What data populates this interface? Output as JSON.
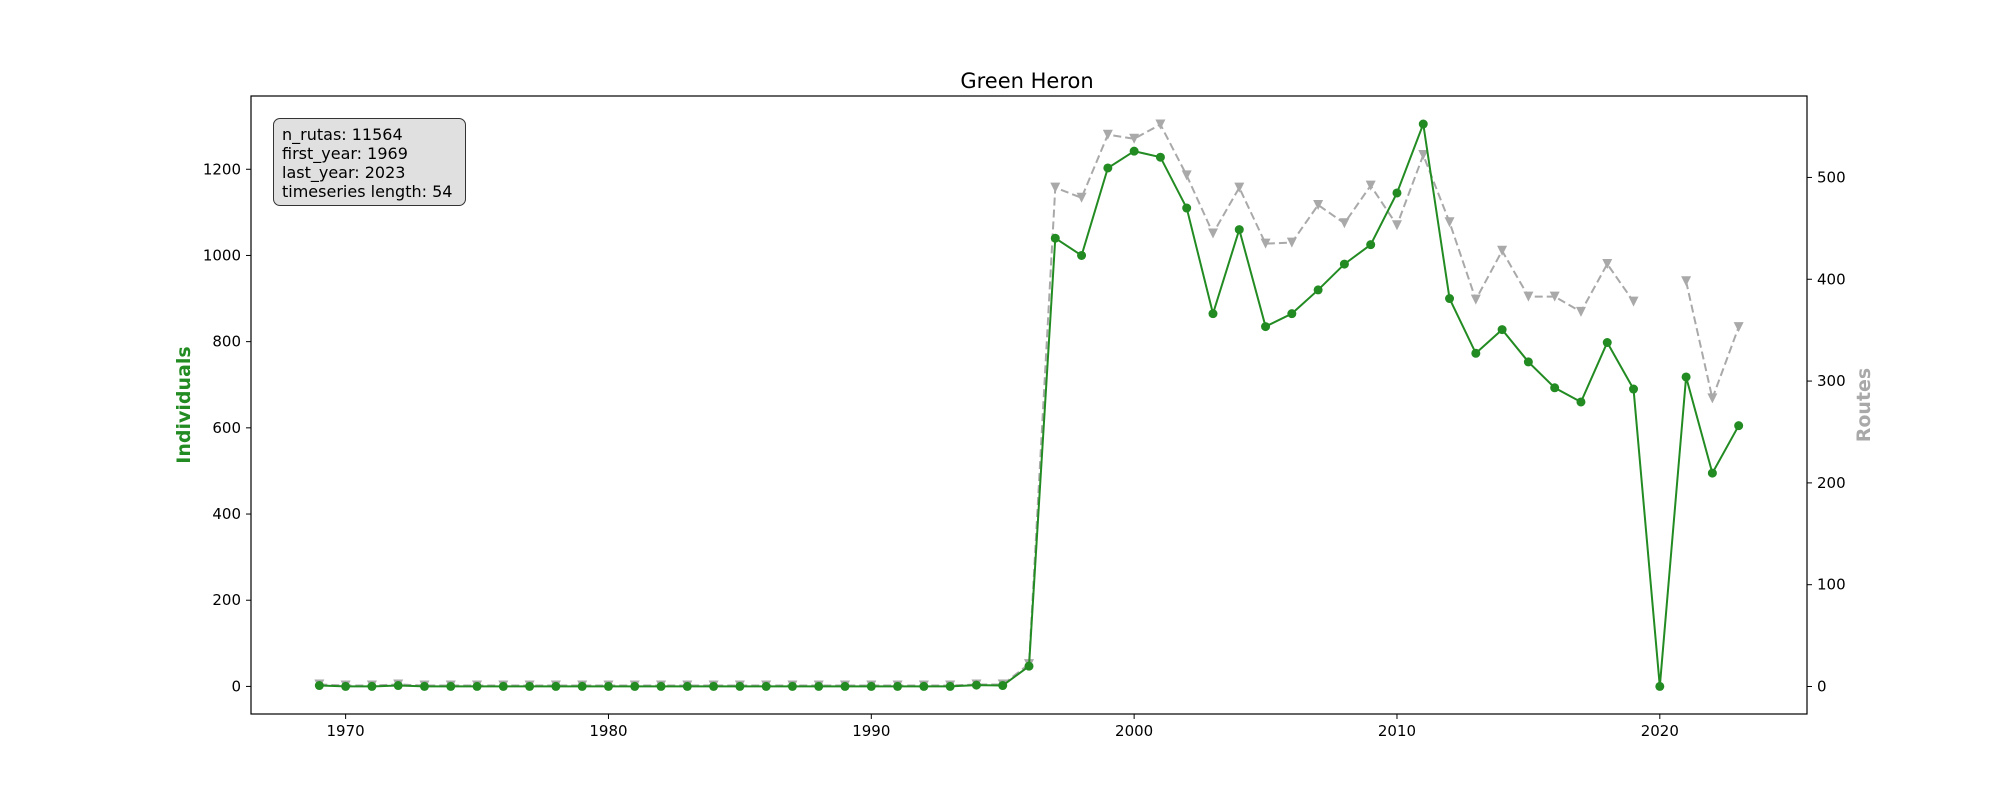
{
  "chart_data": {
    "type": "line",
    "title": "Green Heron",
    "xlabel": "",
    "ylabel": "Individuals",
    "ylabel_right": "Routes",
    "xlim": [
      1966.4,
      2025.6
    ],
    "ylim": [
      -64,
      1370
    ],
    "ylim_right": [
      -27,
      580
    ],
    "xticks": [
      1970,
      1980,
      1990,
      2000,
      2010,
      2020
    ],
    "yticks_left": [
      0,
      200,
      400,
      600,
      800,
      1000,
      1200
    ],
    "yticks_right": [
      0,
      100,
      200,
      300,
      400,
      500
    ],
    "grid": false,
    "colors": {
      "individuals": "#228b22",
      "routes": "#a9a9a9"
    },
    "info_box": {
      "n_rutas": "n_rutas: 11564",
      "first_year": "first_year: 1969",
      "last_year": "last_year: 2023",
      "ts_length": "timeseries length: 54"
    },
    "x": [
      1969,
      1970,
      1971,
      1972,
      1973,
      1974,
      1975,
      1976,
      1977,
      1978,
      1979,
      1980,
      1981,
      1982,
      1983,
      1984,
      1985,
      1986,
      1987,
      1988,
      1989,
      1990,
      1991,
      1992,
      1993,
      1994,
      1995,
      1996,
      1997,
      1998,
      1999,
      2000,
      2001,
      2002,
      2003,
      2004,
      2005,
      2006,
      2007,
      2008,
      2009,
      2010,
      2011,
      2012,
      2013,
      2014,
      2015,
      2016,
      2017,
      2018,
      2019,
      2020,
      2021,
      2022,
      2023
    ],
    "series": [
      {
        "name": "Individuals",
        "axis": "left",
        "style": "solid",
        "marker": "circle",
        "values": [
          2,
          0,
          0,
          2,
          0,
          0,
          0,
          0,
          0,
          0,
          0,
          0,
          0,
          0,
          0,
          0,
          0,
          0,
          0,
          0,
          0,
          0,
          0,
          0,
          0,
          3,
          2,
          47,
          1040,
          1000,
          1203,
          1242,
          1228,
          1110,
          865,
          1060,
          835,
          865,
          920,
          980,
          1025,
          1145,
          1305,
          900,
          773,
          828,
          753,
          693,
          660,
          798,
          690,
          0,
          718,
          495,
          605
        ]
      },
      {
        "name": "Routes",
        "axis": "right",
        "style": "dashed",
        "marker": "triangle-down",
        "values": [
          2,
          1,
          1,
          2,
          1,
          1,
          1,
          1,
          1,
          1,
          1,
          1,
          1,
          1,
          1,
          1,
          1,
          1,
          1,
          1,
          1,
          1,
          1,
          1,
          1,
          2,
          2,
          22,
          490,
          480,
          542,
          538,
          552,
          502,
          445,
          490,
          435,
          436,
          473,
          455,
          492,
          453,
          522,
          456,
          380,
          428,
          383,
          383,
          368,
          415,
          378,
          null,
          398,
          283,
          353
        ]
      }
    ]
  }
}
